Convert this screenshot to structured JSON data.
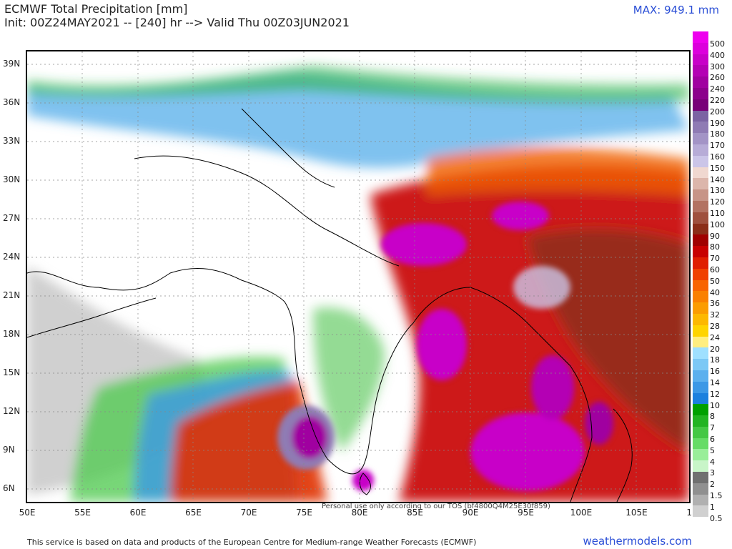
{
  "header": {
    "title": "ECMWF Total Precipitation [mm]",
    "subtitle": "Init: 00Z24MAY2021 -- [240] hr --> Valid Thu 00Z03JUN2021",
    "max_label": "MAX: 949.1 mm"
  },
  "axes": {
    "lat_labels": [
      "39N",
      "36N",
      "33N",
      "30N",
      "27N",
      "24N",
      "21N",
      "18N",
      "15N",
      "12N",
      "9N",
      "6N"
    ],
    "lon_labels": [
      "50E",
      "55E",
      "60E",
      "65E",
      "70E",
      "75E",
      "80E",
      "85E",
      "90E",
      "95E",
      "100E",
      "105E",
      "11"
    ]
  },
  "colorbar": {
    "labels": [
      "500",
      "400",
      "300",
      "260",
      "240",
      "220",
      "200",
      "190",
      "180",
      "170",
      "160",
      "150",
      "140",
      "130",
      "120",
      "110",
      "100",
      "90",
      "80",
      "70",
      "60",
      "50",
      "40",
      "36",
      "32",
      "28",
      "24",
      "20",
      "18",
      "16",
      "14",
      "12",
      "10",
      "8",
      "7",
      "6",
      "5",
      "4",
      "3",
      "2",
      "1.5",
      "1",
      "0.5"
    ],
    "colors": [
      "#ee00ee",
      "#dc00dc",
      "#c800c8",
      "#b400b4",
      "#a000a0",
      "#8c008c",
      "#780078",
      "#7b63a3",
      "#8f7bb4",
      "#a394c6",
      "#b7acd7",
      "#cbc5e8",
      "#f0d8d0",
      "#dcb6ab",
      "#c79487",
      "#b37262",
      "#9f503e",
      "#8b2e19",
      "#a00000",
      "#c80000",
      "#e01e00",
      "#f04000",
      "#f86400",
      "#fa8000",
      "#fb9c00",
      "#fdb800",
      "#ffd400",
      "#ffee80",
      "#9fe0ff",
      "#7cc8f5",
      "#5cb0ee",
      "#3c98e6",
      "#1c80de",
      "#00a000",
      "#22b422",
      "#44c844",
      "#66dc66",
      "#99ee99",
      "#c8f5c8",
      "#707070",
      "#909090",
      "#b0b0b0",
      "#d0d0d0"
    ]
  },
  "footer": {
    "attribution": "This service is based on data and products of the European Centre for Medium-range Weather Forecasts (ECMWF)",
    "site": "weathermodels.com",
    "watermark": "Personal use only according to our TOS (bf4800Q4M25E30f859)"
  }
}
